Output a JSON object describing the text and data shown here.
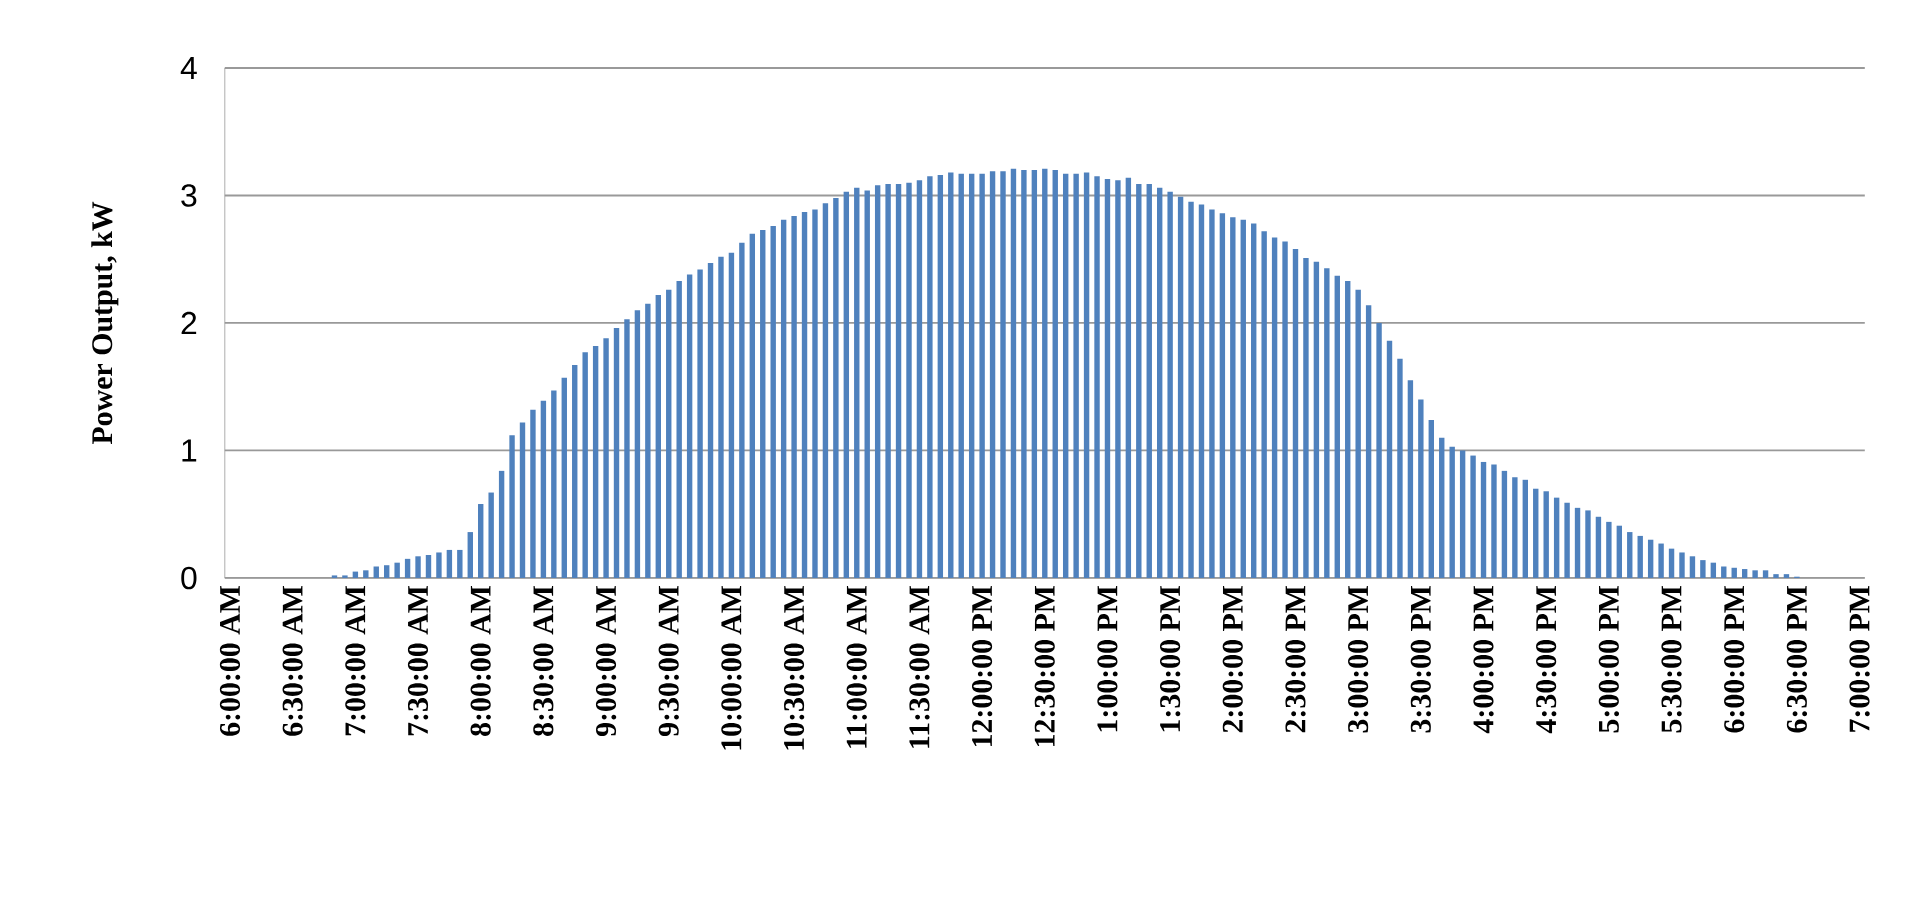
{
  "chart_data": {
    "type": "bar",
    "ylabel": "Power Output, kW",
    "categories": [
      "6:00:00 AM",
      null,
      null,
      null,
      null,
      null,
      "6:30:00 AM",
      null,
      null,
      null,
      null,
      null,
      "7:00:00 AM",
      null,
      null,
      null,
      null,
      null,
      "7:30:00 AM",
      null,
      null,
      null,
      null,
      null,
      "8:00:00 AM",
      null,
      null,
      null,
      null,
      null,
      "8:30:00 AM",
      null,
      null,
      null,
      null,
      null,
      "9:00:00 AM",
      null,
      null,
      null,
      null,
      null,
      "9:30:00 AM",
      null,
      null,
      null,
      null,
      null,
      "10:00:00 AM",
      null,
      null,
      null,
      null,
      null,
      "10:30:00 AM",
      null,
      null,
      null,
      null,
      null,
      "11:00:00 AM",
      null,
      null,
      null,
      null,
      null,
      "11:30:00 AM",
      null,
      null,
      null,
      null,
      null,
      "12:00:00 PM",
      null,
      null,
      null,
      null,
      null,
      "12:30:00 PM",
      null,
      null,
      null,
      null,
      null,
      "1:00:00 PM",
      null,
      null,
      null,
      null,
      null,
      "1:30:00 PM",
      null,
      null,
      null,
      null,
      null,
      "2:00:00 PM",
      null,
      null,
      null,
      null,
      null,
      "2:30:00 PM",
      null,
      null,
      null,
      null,
      null,
      "3:00:00 PM",
      null,
      null,
      null,
      null,
      null,
      "3:30:00 PM",
      null,
      null,
      null,
      null,
      null,
      "4:00:00 PM",
      null,
      null,
      null,
      null,
      null,
      "4:30:00 PM",
      null,
      null,
      null,
      null,
      null,
      "5:00:00 PM",
      null,
      null,
      null,
      null,
      null,
      "5:30:00 PM",
      null,
      null,
      null,
      null,
      null,
      "6:00:00 PM",
      null,
      null,
      null,
      null,
      null,
      "6:30:00 PM",
      null,
      null,
      null,
      null,
      null,
      "7:00:00 PM"
    ],
    "values": [
      0,
      0,
      0,
      0,
      0,
      0,
      0,
      0,
      0,
      0,
      0.02,
      0.02,
      0.05,
      0.06,
      0.09,
      0.1,
      0.12,
      0.15,
      0.17,
      0.18,
      0.2,
      0.22,
      0.22,
      0.36,
      0.58,
      0.67,
      0.84,
      1.12,
      1.22,
      1.32,
      1.39,
      1.47,
      1.57,
      1.67,
      1.77,
      1.82,
      1.88,
      1.96,
      2.03,
      2.1,
      2.15,
      2.22,
      2.26,
      2.33,
      2.38,
      2.42,
      2.47,
      2.52,
      2.55,
      2.63,
      2.7,
      2.73,
      2.76,
      2.81,
      2.84,
      2.87,
      2.89,
      2.94,
      2.98,
      3.03,
      3.06,
      3.04,
      3.08,
      3.09,
      3.09,
      3.1,
      3.12,
      3.15,
      3.16,
      3.18,
      3.17,
      3.17,
      3.17,
      3.19,
      3.19,
      3.21,
      3.2,
      3.2,
      3.21,
      3.2,
      3.17,
      3.17,
      3.18,
      3.15,
      3.13,
      3.12,
      3.14,
      3.09,
      3.09,
      3.06,
      3.03,
      2.99,
      2.95,
      2.93,
      2.89,
      2.86,
      2.83,
      2.81,
      2.78,
      2.72,
      2.67,
      2.64,
      2.58,
      2.51,
      2.48,
      2.43,
      2.37,
      2.33,
      2.26,
      2.14,
      2.0,
      1.86,
      1.72,
      1.55,
      1.4,
      1.24,
      1.1,
      1.03,
      1.0,
      0.96,
      0.91,
      0.89,
      0.84,
      0.79,
      0.77,
      0.7,
      0.68,
      0.63,
      0.59,
      0.55,
      0.53,
      0.48,
      0.44,
      0.41,
      0.36,
      0.33,
      0.3,
      0.27,
      0.23,
      0.2,
      0.17,
      0.14,
      0.12,
      0.09,
      0.08,
      0.07,
      0.06,
      0.06,
      0.03,
      0.03,
      0.01,
      0,
      0,
      0,
      0,
      0,
      0
    ],
    "color": "#4f81bd",
    "ylim": [
      0,
      4
    ],
    "yticks": [
      0,
      1,
      2,
      3,
      4
    ],
    "grid": "y"
  }
}
